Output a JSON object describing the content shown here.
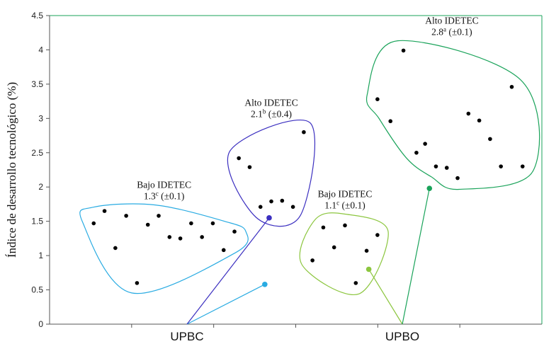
{
  "chart_data": {
    "type": "scatter",
    "title": "",
    "ylabel": "Índice de desarrollo tecnológico (%)",
    "xlabel": "",
    "ylim": [
      0,
      4.5
    ],
    "yticks": [
      "0",
      "0.5",
      "1",
      "1.5",
      "2",
      "2.5",
      "3",
      "3.5",
      "4",
      "4.5"
    ],
    "categories": [
      "UPBC",
      "UPBO"
    ],
    "xlim": [
      0,
      10
    ],
    "grid": false,
    "groups": [
      {
        "category": "UPBC",
        "title": "Bajo IDETEC",
        "value": "1.3",
        "superscript": "c",
        "error": "(±0.1)",
        "color": "#29abe2",
        "anchor": [
          4.4,
          0.58
        ],
        "points": [
          [
            0.45,
            1.47
          ],
          [
            0.7,
            1.65
          ],
          [
            0.95,
            1.11
          ],
          [
            1.2,
            1.58
          ],
          [
            1.45,
            0.6
          ],
          [
            1.7,
            1.45
          ],
          [
            1.95,
            1.58
          ],
          [
            2.2,
            1.27
          ],
          [
            2.45,
            1.25
          ],
          [
            2.7,
            1.47
          ],
          [
            2.95,
            1.27
          ],
          [
            3.2,
            1.47
          ],
          [
            3.45,
            1.08
          ],
          [
            3.7,
            1.35
          ]
        ]
      },
      {
        "category": "UPBC",
        "title": "Alto IDETEC",
        "value": "2.1",
        "superscript": "b",
        "error": "(±0.4)",
        "color": "#3b2fc0",
        "anchor": [
          4.5,
          1.55
        ],
        "points": [
          [
            3.8,
            2.42
          ],
          [
            4.05,
            2.29
          ],
          [
            4.3,
            1.71
          ],
          [
            4.55,
            1.79
          ],
          [
            4.8,
            1.8
          ],
          [
            5.05,
            1.71
          ],
          [
            5.3,
            2.8
          ]
        ]
      },
      {
        "category": "UPBO",
        "title": "Bajo IDETEC",
        "value": "1.1",
        "superscript": "c",
        "error": "(±0.1)",
        "color": "#8cc63f",
        "anchor": [
          6.8,
          0.8
        ],
        "points": [
          [
            5.5,
            0.93
          ],
          [
            5.75,
            1.41
          ],
          [
            6.0,
            1.12
          ],
          [
            6.25,
            1.44
          ],
          [
            6.5,
            0.6
          ],
          [
            6.75,
            1.07
          ],
          [
            7.0,
            1.3
          ]
        ]
      },
      {
        "category": "UPBO",
        "title": "Alto IDETEC",
        "value": "2.8",
        "superscript": "a",
        "error": "(±0.1)",
        "color": "#1aa35a",
        "anchor": [
          8.2,
          1.98
        ],
        "points": [
          [
            7.0,
            3.28
          ],
          [
            7.3,
            2.96
          ],
          [
            7.6,
            3.99
          ],
          [
            7.9,
            2.5
          ],
          [
            8.1,
            2.63
          ],
          [
            8.35,
            2.3
          ],
          [
            8.6,
            2.28
          ],
          [
            8.85,
            2.13
          ],
          [
            9.1,
            3.07
          ],
          [
            9.35,
            2.97
          ],
          [
            9.6,
            2.7
          ],
          [
            9.85,
            2.3
          ],
          [
            10.1,
            3.46
          ],
          [
            10.35,
            2.3
          ]
        ]
      }
    ]
  }
}
